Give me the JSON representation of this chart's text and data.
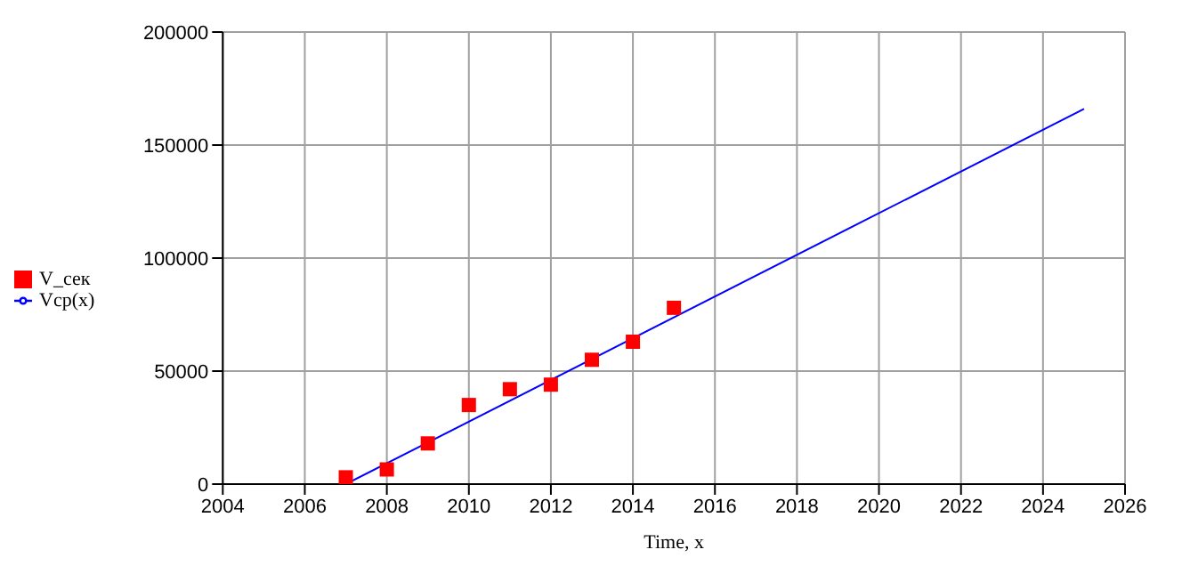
{
  "chart_data": {
    "type": "scatter",
    "xlabel": "Time, x",
    "xlim": [
      2004,
      2026
    ],
    "xticks": [
      2004,
      2006,
      2008,
      2010,
      2012,
      2014,
      2016,
      2018,
      2020,
      2022,
      2024,
      2026
    ],
    "ylim": [
      0,
      200000
    ],
    "yticks": [
      0,
      50000,
      100000,
      150000,
      200000
    ],
    "grid": true,
    "legend": "left",
    "series": [
      {
        "name": "V_сек",
        "color": "#ff0000",
        "marker": "square",
        "x": [
          2007,
          2008,
          2009,
          2010,
          2011,
          2012,
          2013,
          2014,
          2015
        ],
        "values": [
          3000,
          6500,
          18000,
          35000,
          42000,
          44000,
          55000,
          63000,
          78000
        ]
      },
      {
        "name": "Vср(x)",
        "type": "line",
        "color": "#0000ff",
        "marker": "none",
        "line_style": "solid",
        "x": [
          2007,
          2025
        ],
        "values": [
          0,
          166000
        ]
      }
    ]
  }
}
